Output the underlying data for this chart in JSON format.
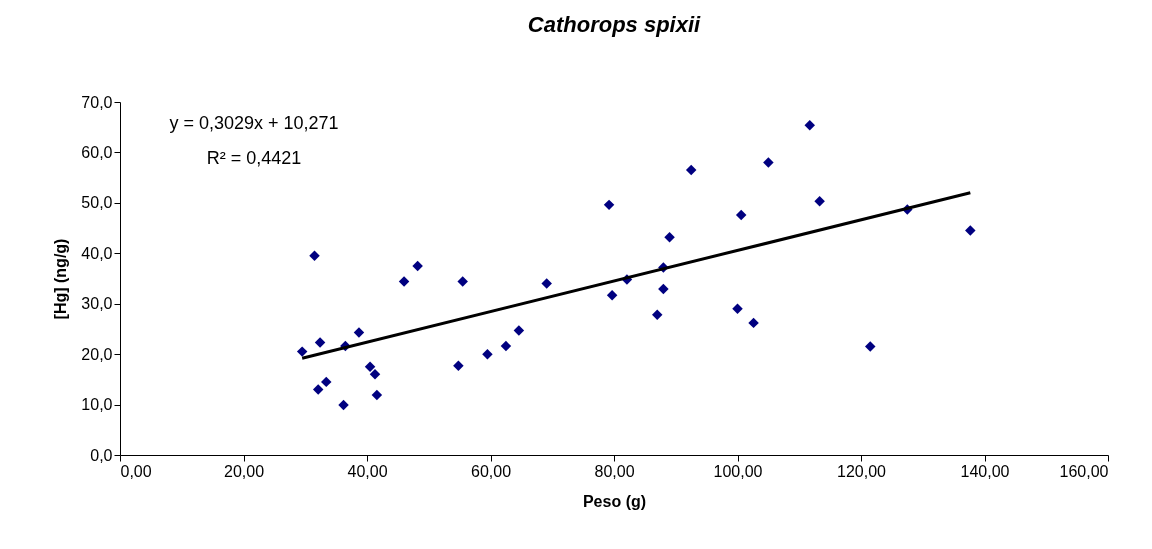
{
  "chart_data": {
    "type": "scatter",
    "title": "Cathorops spixii",
    "xlabel": "Peso (g)",
    "ylabel": "[Hg] (ng/g)",
    "xlim": [
      0,
      160
    ],
    "xticks": [
      {
        "value": 0,
        "label": "0,00"
      },
      {
        "value": 20,
        "label": "20,00"
      },
      {
        "value": 40,
        "label": "40,00"
      },
      {
        "value": 60,
        "label": "60,00"
      },
      {
        "value": 80,
        "label": "80,00"
      },
      {
        "value": 100,
        "label": "100,00"
      },
      {
        "value": 120,
        "label": "120,00"
      },
      {
        "value": 140,
        "label": "140,00"
      },
      {
        "value": 160,
        "label": "160,00"
      }
    ],
    "ylim": [
      0,
      70
    ],
    "yticks": [
      {
        "value": 0,
        "label": "0,0"
      },
      {
        "value": 10,
        "label": "10,0"
      },
      {
        "value": 20,
        "label": "20,0"
      },
      {
        "value": 30,
        "label": "30,0"
      },
      {
        "value": 40,
        "label": "40,0"
      },
      {
        "value": 50,
        "label": "50,0"
      },
      {
        "value": 60,
        "label": "60,0"
      },
      {
        "value": 70,
        "label": "70,0"
      }
    ],
    "grid": false,
    "series": [
      {
        "marker": "diamond",
        "color": "#000080",
        "x": [
          29.5,
          31.5,
          32.1,
          32.4,
          33.4,
          36.2,
          36.5,
          38.7,
          40.5,
          41.3,
          41.6,
          46.0,
          48.2,
          54.8,
          55.5,
          59.5,
          62.5,
          64.6,
          69.1,
          79.2,
          79.7,
          82.1,
          87.0,
          88.0,
          88.0,
          89.0,
          92.5,
          100.0,
          100.6,
          102.6,
          105.0,
          111.7,
          113.3,
          121.5,
          127.5,
          137.7
        ],
        "values": [
          20.5,
          39.5,
          13.0,
          22.3,
          14.5,
          9.9,
          21.6,
          24.3,
          17.5,
          16.0,
          11.9,
          34.4,
          37.5,
          17.7,
          34.4,
          20.0,
          21.6,
          24.7,
          34.0,
          49.6,
          31.7,
          34.8,
          27.8,
          37.2,
          32.9,
          43.2,
          56.5,
          29.0,
          47.6,
          26.2,
          58.0,
          65.4,
          50.3,
          21.5,
          48.7,
          44.5
        ]
      },
      {
        "type": "line",
        "color": "#000000",
        "x": [
          29.5,
          137.7
        ],
        "values": [
          19.2,
          52.0
        ]
      }
    ],
    "annotations": [
      "y = 0,3029x + 10,271",
      "R² = 0,4421"
    ]
  }
}
